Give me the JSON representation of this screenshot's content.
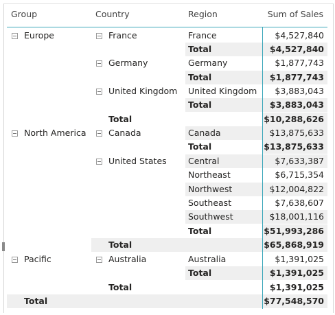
{
  "columns": {
    "group": "Group",
    "country": "Country",
    "region": "Region",
    "sales": "Sum of Sales"
  },
  "rows": [
    {
      "group": "Europe",
      "country": "France",
      "region": "France",
      "sales": "$4,527,840"
    },
    {
      "region": "Total",
      "sales": "$4,527,840"
    },
    {
      "country": "Germany",
      "region": "Germany",
      "sales": "$1,877,743"
    },
    {
      "region": "Total",
      "sales": "$1,877,743"
    },
    {
      "country": "United Kingdom",
      "region": "United Kingdom",
      "sales": "$3,883,043"
    },
    {
      "region": "Total",
      "sales": "$3,883,043"
    },
    {
      "country": "Total",
      "sales": "$10,288,626"
    },
    {
      "group": "North America",
      "country": "Canada",
      "region": "Canada",
      "sales": "$13,875,633"
    },
    {
      "region": "Total",
      "sales": "$13,875,633"
    },
    {
      "country": "United States",
      "region": "Central",
      "sales": "$7,633,387"
    },
    {
      "region": "Northeast",
      "sales": "$6,715,354"
    },
    {
      "region": "Northwest",
      "sales": "$12,004,822"
    },
    {
      "region": "Southeast",
      "sales": "$7,638,607"
    },
    {
      "region": "Southwest",
      "sales": "$18,001,116"
    },
    {
      "region": "Total",
      "sales": "$51,993,286"
    },
    {
      "country": "Total",
      "sales": "$65,868,919"
    },
    {
      "group": "Pacific",
      "country": "Australia",
      "region": "Australia",
      "sales": "$1,391,025"
    },
    {
      "region": "Total",
      "sales": "$1,391,025"
    },
    {
      "country": "Total",
      "sales": "$1,391,025"
    },
    {
      "group": "Total",
      "sales": "$77,548,570"
    }
  ]
}
